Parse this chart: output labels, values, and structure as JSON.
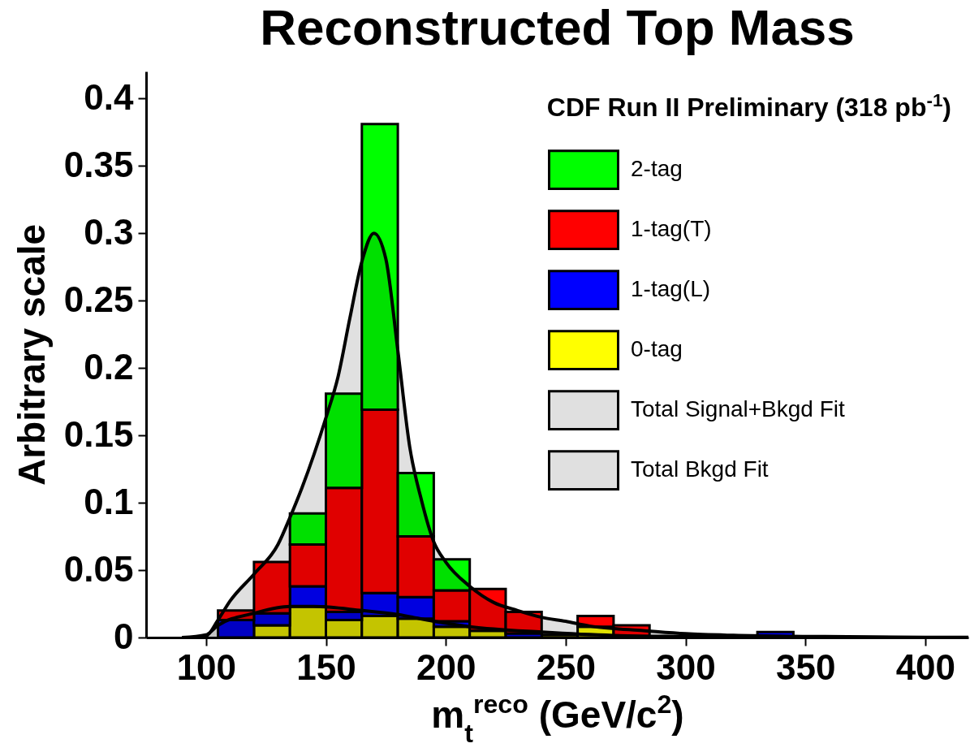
{
  "chart_data": {
    "type": "bar",
    "title": "Reconstructed Top Mass",
    "xlabel": "m$_{t}$$^{reco}$ (GeV/c$^{2}$)",
    "ylabel": "Arbitrary scale",
    "annotations": [
      "CDF Run II Preliminary (318 pb$^{-1}$)"
    ],
    "x": [
      112.5,
      127.5,
      142.5,
      157.5,
      172.5,
      187.5,
      202.5,
      217.5,
      232.5,
      247.5,
      262.5,
      277.5,
      292.5,
      307.5,
      322.5,
      337.5
    ],
    "stacked": true,
    "series": [
      {
        "name": "0-tag",
        "color": "#ffff00",
        "values": [
          null,
          0.009,
          0.023,
          0.013,
          0.016,
          0.014,
          0.008,
          0.005,
          null,
          0.002,
          0.008,
          null,
          null,
          null,
          null,
          null
        ]
      },
      {
        "name": "1-tag(L)",
        "color": "#0000ff",
        "values": [
          0.013,
          0.009,
          0.015,
          0.006,
          0.017,
          0.016,
          0.004,
          null,
          0.003,
          null,
          null,
          null,
          null,
          null,
          null,
          0.004
        ]
      },
      {
        "name": "1-tag(T)",
        "color": "#ff0000",
        "values": [
          0.007,
          0.038,
          0.031,
          0.092,
          0.136,
          0.045,
          0.023,
          0.031,
          0.016,
          null,
          0.008,
          0.009,
          null,
          null,
          null,
          null
        ]
      },
      {
        "name": "2-tag",
        "color": "#00ff00",
        "values": [
          null,
          null,
          0.023,
          0.07,
          0.212,
          0.047,
          0.023,
          null,
          null,
          null,
          null,
          null,
          null,
          null,
          null,
          null
        ]
      },
      {
        "name": "Total Signal+Bkgd Fit",
        "type": "line",
        "color": "#000000",
        "x": [
          90,
          95,
          100,
          105,
          110,
          120,
          130,
          135,
          140,
          150,
          155,
          160,
          165,
          170,
          175,
          180,
          185,
          190,
          195,
          200,
          210,
          220,
          230,
          240,
          250,
          260,
          270,
          280,
          300,
          320,
          350,
          400,
          418
        ],
        "values": [
          0,
          0,
          0.001,
          0.013,
          0.027,
          0.047,
          0.069,
          0.089,
          0.111,
          0.163,
          0.193,
          0.237,
          0.279,
          0.3,
          0.281,
          0.213,
          0.141,
          0.101,
          0.071,
          0.056,
          0.038,
          0.026,
          0.02,
          0.015,
          0.012,
          0.0085,
          0.0066,
          0.0054,
          0.0028,
          0.0016,
          0.0008,
          0.0002,
          0.0001
        ]
      },
      {
        "name": "Total Bkgd Fit",
        "type": "line",
        "color": "#000000",
        "x": [
          90,
          100,
          105,
          120,
          135,
          145,
          165,
          180,
          195,
          210,
          240,
          270,
          300,
          350,
          418
        ],
        "values": [
          0,
          0.002,
          0.009,
          0.018,
          0.023,
          0.023,
          0.02,
          0.017,
          0.012,
          0.008,
          0.004,
          0.0015,
          0.0008,
          0.0002,
          0
        ]
      }
    ],
    "xlim": [
      75,
      418
    ],
    "ylim": [
      0,
      0.42
    ],
    "xticks": [
      100,
      150,
      200,
      250,
      300,
      350,
      400
    ],
    "yticks": [
      0,
      0.05,
      0.1,
      0.15,
      0.2,
      0.25,
      0.3,
      0.35,
      0.4
    ],
    "legend": "top right"
  }
}
